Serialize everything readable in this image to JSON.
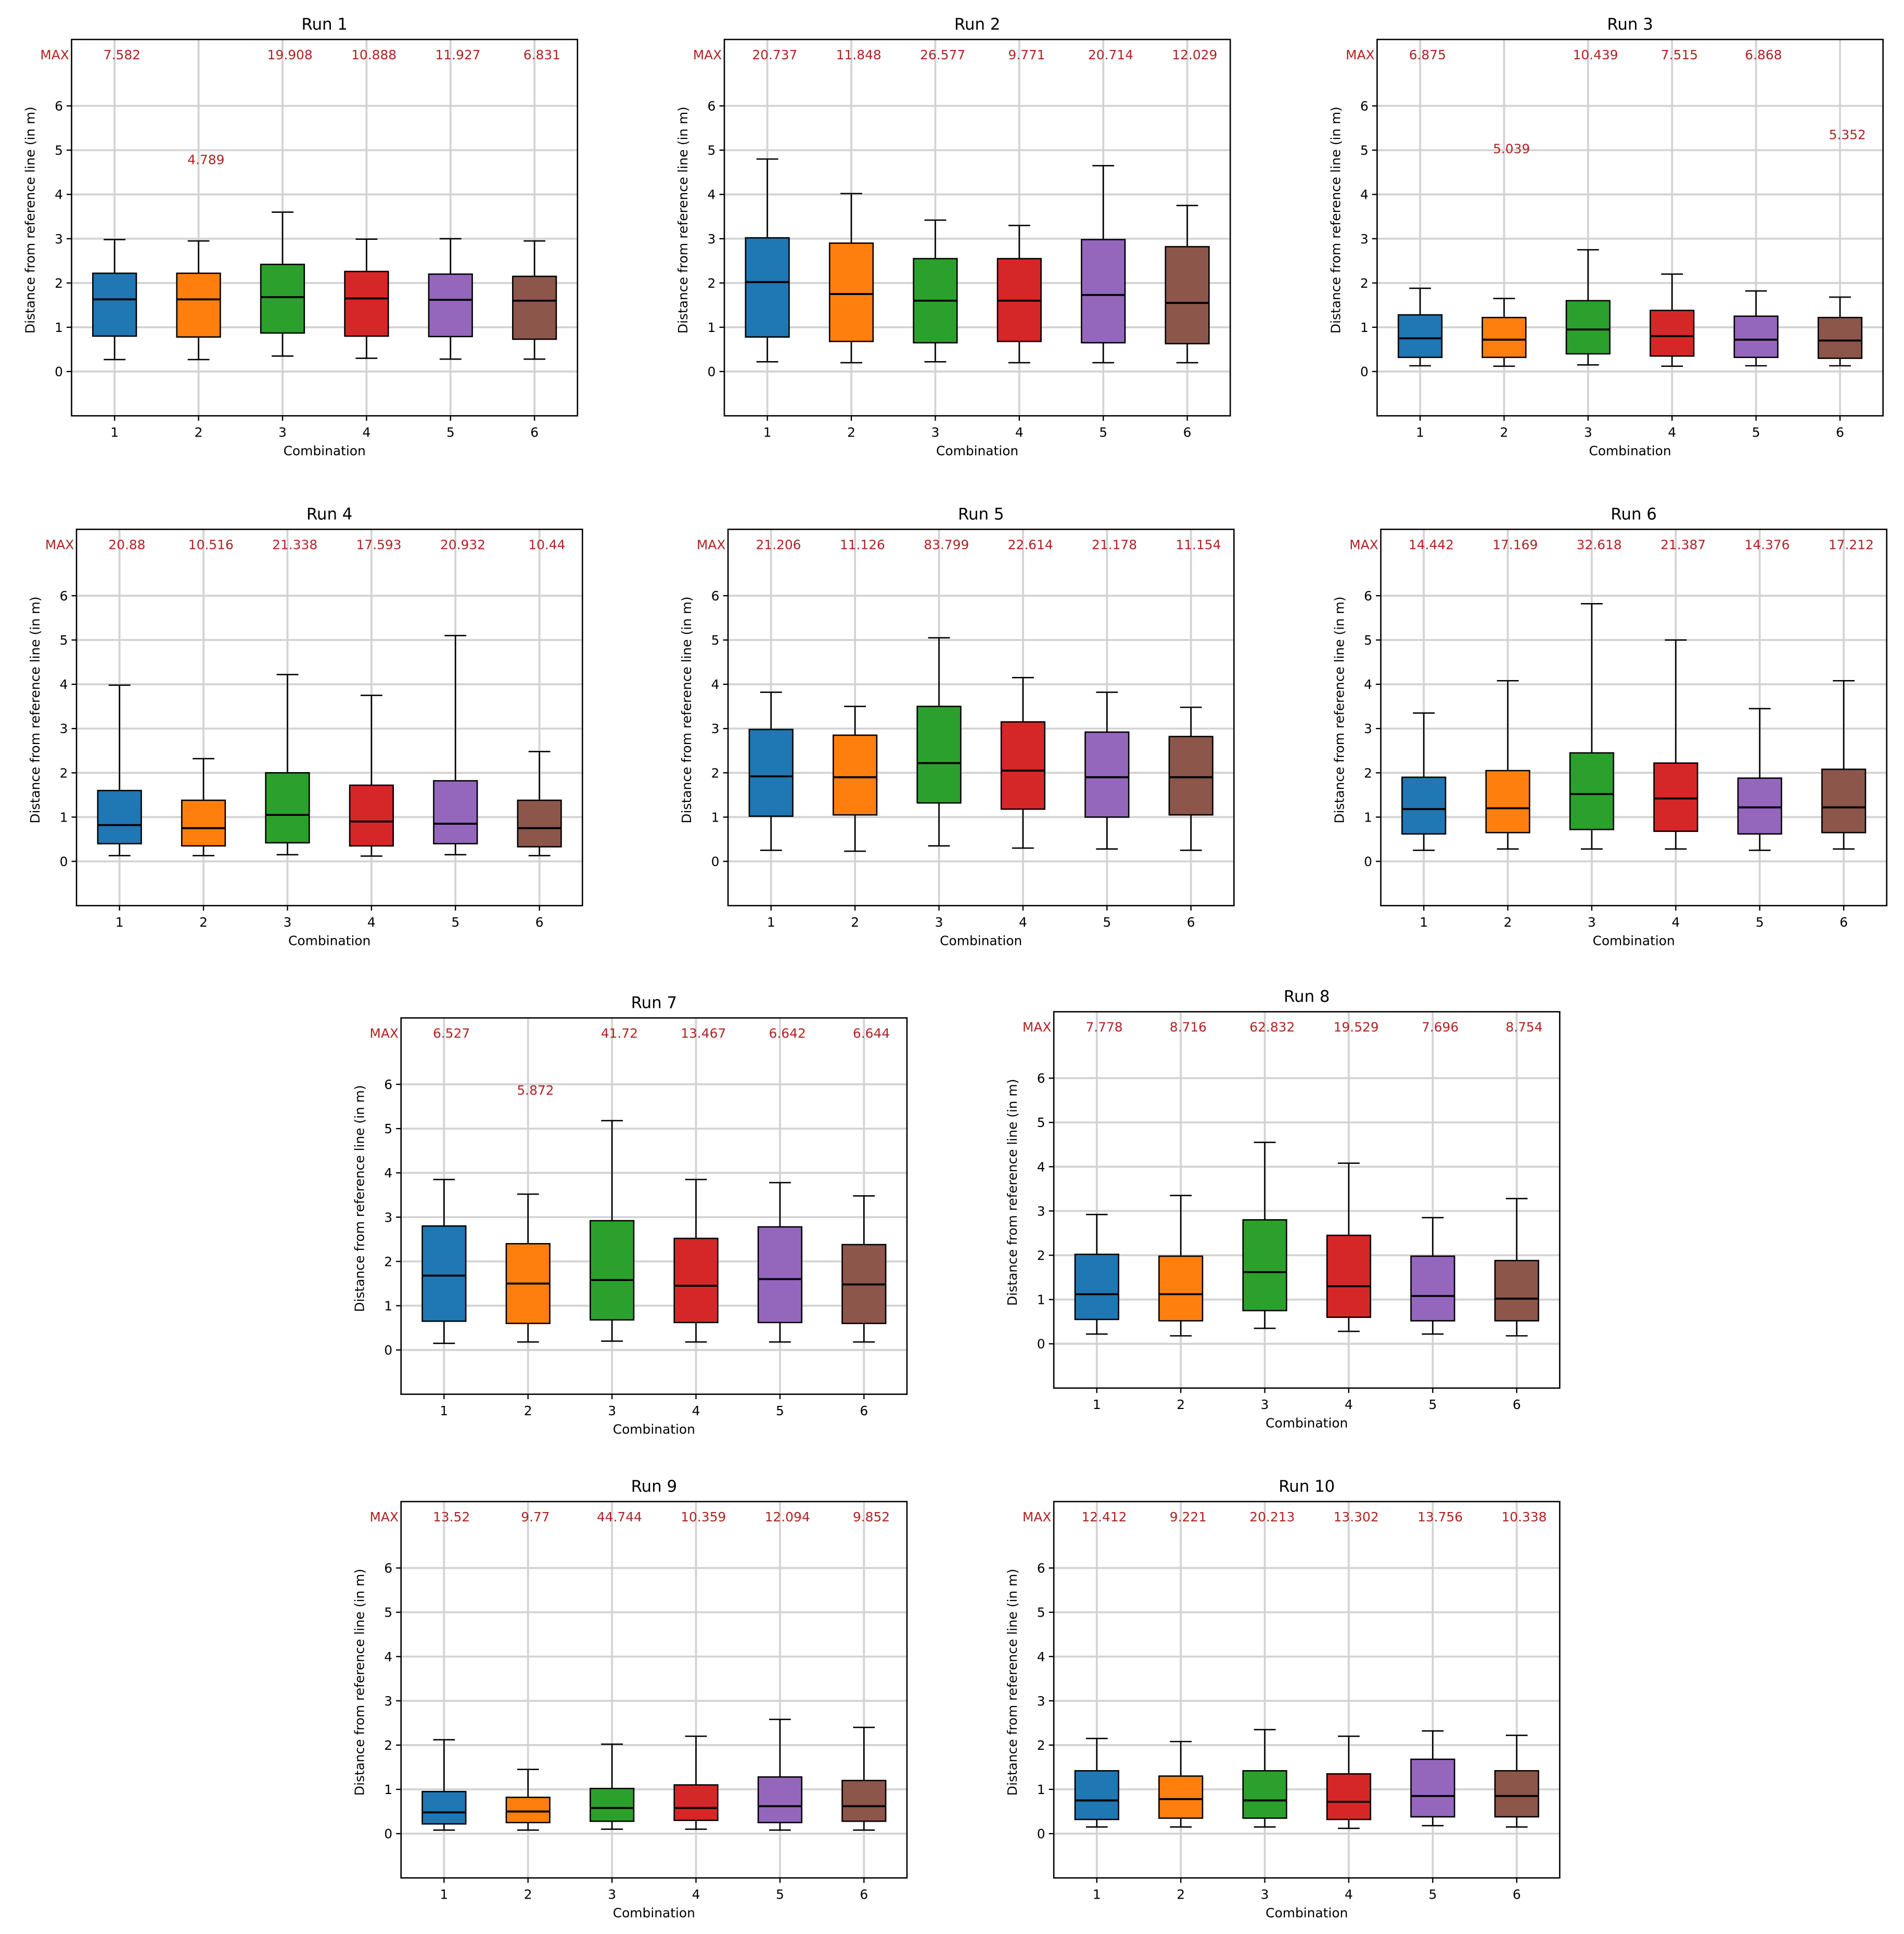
{
  "figure": {
    "max_label": "MAX"
  },
  "colors": [
    "#1f77b4",
    "#ff7f0e",
    "#2ca02c",
    "#d62728",
    "#9467bd",
    "#8c564b"
  ],
  "max_text_color": "#b22222",
  "chart_data": [
    {
      "type": "box",
      "title": "Run 1",
      "xlabel": "Combination",
      "ylabel": "Distance from reference line (in m)",
      "categories": [
        "1",
        "2",
        "3",
        "4",
        "5",
        "6"
      ],
      "yticks": [
        "0",
        "1",
        "2",
        "3",
        "4",
        "5",
        "6"
      ],
      "ylim": [
        -1,
        7.5
      ],
      "max_values": [
        "7.582",
        "",
        "19.908",
        "10.888",
        "11.927",
        "6.831"
      ],
      "inrange_max": [
        {
          "category": 2,
          "value": 4.789,
          "label": "4.789"
        }
      ],
      "boxes": [
        {
          "whislo": 0.27,
          "q1": 0.8,
          "med": 1.63,
          "q3": 2.22,
          "whishi": 2.98
        },
        {
          "whislo": 0.27,
          "q1": 0.78,
          "med": 1.63,
          "q3": 2.22,
          "whishi": 2.95
        },
        {
          "whislo": 0.35,
          "q1": 0.87,
          "med": 1.68,
          "q3": 2.42,
          "whishi": 3.6
        },
        {
          "whislo": 0.3,
          "q1": 0.8,
          "med": 1.65,
          "q3": 2.26,
          "whishi": 2.99
        },
        {
          "whislo": 0.28,
          "q1": 0.79,
          "med": 1.62,
          "q3": 2.2,
          "whishi": 3.0
        },
        {
          "whislo": 0.28,
          "q1": 0.73,
          "med": 1.6,
          "q3": 2.15,
          "whishi": 2.95
        }
      ]
    },
    {
      "type": "box",
      "title": "Run 2",
      "xlabel": "Combination",
      "ylabel": "Distance from reference line (in m)",
      "categories": [
        "1",
        "2",
        "3",
        "4",
        "5",
        "6"
      ],
      "yticks": [
        "0",
        "1",
        "2",
        "3",
        "4",
        "5",
        "6"
      ],
      "ylim": [
        -1,
        7.5
      ],
      "max_values": [
        "20.737",
        "11.848",
        "26.577",
        "9.771",
        "20.714",
        "12.029"
      ],
      "inrange_max": [],
      "boxes": [
        {
          "whislo": 0.22,
          "q1": 0.78,
          "med": 2.02,
          "q3": 3.02,
          "whishi": 4.8
        },
        {
          "whislo": 0.2,
          "q1": 0.68,
          "med": 1.75,
          "q3": 2.9,
          "whishi": 4.02
        },
        {
          "whislo": 0.22,
          "q1": 0.65,
          "med": 1.6,
          "q3": 2.55,
          "whishi": 3.42
        },
        {
          "whislo": 0.2,
          "q1": 0.68,
          "med": 1.6,
          "q3": 2.55,
          "whishi": 3.3
        },
        {
          "whislo": 0.2,
          "q1": 0.65,
          "med": 1.73,
          "q3": 2.98,
          "whishi": 4.65
        },
        {
          "whislo": 0.2,
          "q1": 0.63,
          "med": 1.55,
          "q3": 2.82,
          "whishi": 3.75
        }
      ]
    },
    {
      "type": "box",
      "title": "Run 3",
      "xlabel": "Combination",
      "ylabel": "Distance from reference line (in m)",
      "categories": [
        "1",
        "2",
        "3",
        "4",
        "5",
        "6"
      ],
      "yticks": [
        "0",
        "1",
        "2",
        "3",
        "4",
        "5",
        "6"
      ],
      "ylim": [
        -1,
        7.5
      ],
      "max_values": [
        "6.875",
        "",
        "10.439",
        "7.515",
        "6.868",
        ""
      ],
      "inrange_max": [
        {
          "category": 2,
          "value": 5.039,
          "label": "5.039"
        },
        {
          "category": 6,
          "value": 5.352,
          "label": "5.352"
        }
      ],
      "boxes": [
        {
          "whislo": 0.13,
          "q1": 0.32,
          "med": 0.75,
          "q3": 1.28,
          "whishi": 1.88
        },
        {
          "whislo": 0.12,
          "q1": 0.32,
          "med": 0.72,
          "q3": 1.22,
          "whishi": 1.65
        },
        {
          "whislo": 0.15,
          "q1": 0.4,
          "med": 0.95,
          "q3": 1.6,
          "whishi": 2.75
        },
        {
          "whislo": 0.12,
          "q1": 0.35,
          "med": 0.8,
          "q3": 1.38,
          "whishi": 2.2
        },
        {
          "whislo": 0.13,
          "q1": 0.32,
          "med": 0.72,
          "q3": 1.25,
          "whishi": 1.82
        },
        {
          "whislo": 0.13,
          "q1": 0.3,
          "med": 0.7,
          "q3": 1.22,
          "whishi": 1.68
        }
      ]
    },
    {
      "type": "box",
      "title": "Run 4",
      "xlabel": "Combination",
      "ylabel": "Distance from reference line (in m)",
      "categories": [
        "1",
        "2",
        "3",
        "4",
        "5",
        "6"
      ],
      "yticks": [
        "0",
        "1",
        "2",
        "3",
        "4",
        "5",
        "6"
      ],
      "ylim": [
        -1,
        7.5
      ],
      "max_values": [
        "20.88",
        "10.516",
        "21.338",
        "17.593",
        "20.932",
        "10.44"
      ],
      "inrange_max": [],
      "boxes": [
        {
          "whislo": 0.13,
          "q1": 0.4,
          "med": 0.82,
          "q3": 1.6,
          "whishi": 3.98
        },
        {
          "whislo": 0.13,
          "q1": 0.35,
          "med": 0.75,
          "q3": 1.38,
          "whishi": 2.32
        },
        {
          "whislo": 0.15,
          "q1": 0.42,
          "med": 1.05,
          "q3": 2.0,
          "whishi": 4.22
        },
        {
          "whislo": 0.12,
          "q1": 0.35,
          "med": 0.9,
          "q3": 1.72,
          "whishi": 3.75
        },
        {
          "whislo": 0.15,
          "q1": 0.4,
          "med": 0.85,
          "q3": 1.82,
          "whishi": 5.1
        },
        {
          "whislo": 0.13,
          "q1": 0.33,
          "med": 0.75,
          "q3": 1.38,
          "whishi": 2.48
        }
      ]
    },
    {
      "type": "box",
      "title": "Run 5",
      "xlabel": "Combination",
      "ylabel": "Distance from reference line (in m)",
      "categories": [
        "1",
        "2",
        "3",
        "4",
        "5",
        "6"
      ],
      "yticks": [
        "0",
        "1",
        "2",
        "3",
        "4",
        "5",
        "6"
      ],
      "ylim": [
        -1,
        7.5
      ],
      "max_values": [
        "21.206",
        "11.126",
        "83.799",
        "22.614",
        "21.178",
        "11.154"
      ],
      "inrange_max": [],
      "boxes": [
        {
          "whislo": 0.25,
          "q1": 1.02,
          "med": 1.92,
          "q3": 2.98,
          "whishi": 3.82
        },
        {
          "whislo": 0.23,
          "q1": 1.05,
          "med": 1.9,
          "q3": 2.85,
          "whishi": 3.5
        },
        {
          "whislo": 0.35,
          "q1": 1.32,
          "med": 2.22,
          "q3": 3.5,
          "whishi": 5.05
        },
        {
          "whislo": 0.3,
          "q1": 1.18,
          "med": 2.05,
          "q3": 3.15,
          "whishi": 4.15
        },
        {
          "whislo": 0.28,
          "q1": 1.0,
          "med": 1.9,
          "q3": 2.92,
          "whishi": 3.82
        },
        {
          "whislo": 0.25,
          "q1": 1.05,
          "med": 1.9,
          "q3": 2.82,
          "whishi": 3.48
        }
      ]
    },
    {
      "type": "box",
      "title": "Run 6",
      "xlabel": "Combination",
      "ylabel": "Distance from reference line (in m)",
      "categories": [
        "1",
        "2",
        "3",
        "4",
        "5",
        "6"
      ],
      "yticks": [
        "0",
        "1",
        "2",
        "3",
        "4",
        "5",
        "6"
      ],
      "ylim": [
        -1,
        7.5
      ],
      "max_values": [
        "14.442",
        "17.169",
        "32.618",
        "21.387",
        "14.376",
        "17.212"
      ],
      "inrange_max": [],
      "boxes": [
        {
          "whislo": 0.25,
          "q1": 0.62,
          "med": 1.18,
          "q3": 1.9,
          "whishi": 3.35
        },
        {
          "whislo": 0.28,
          "q1": 0.65,
          "med": 1.2,
          "q3": 2.05,
          "whishi": 4.08
        },
        {
          "whislo": 0.28,
          "q1": 0.72,
          "med": 1.52,
          "q3": 2.45,
          "whishi": 5.82
        },
        {
          "whislo": 0.28,
          "q1": 0.68,
          "med": 1.42,
          "q3": 2.22,
          "whishi": 5.0
        },
        {
          "whislo": 0.25,
          "q1": 0.62,
          "med": 1.22,
          "q3": 1.88,
          "whishi": 3.45
        },
        {
          "whislo": 0.28,
          "q1": 0.65,
          "med": 1.22,
          "q3": 2.08,
          "whishi": 4.08
        }
      ]
    },
    {
      "type": "box",
      "title": "Run 7",
      "xlabel": "Combination",
      "ylabel": "Distance from reference line (in m)",
      "categories": [
        "1",
        "2",
        "3",
        "4",
        "5",
        "6"
      ],
      "yticks": [
        "0",
        "1",
        "2",
        "3",
        "4",
        "5",
        "6"
      ],
      "ylim": [
        -1,
        7.5
      ],
      "max_values": [
        "6.527",
        "",
        "41.72",
        "13.467",
        "6.642",
        "6.644"
      ],
      "inrange_max": [
        {
          "category": 2,
          "value": 5.872,
          "label": "5.872"
        }
      ],
      "boxes": [
        {
          "whislo": 0.15,
          "q1": 0.65,
          "med": 1.68,
          "q3": 2.8,
          "whishi": 3.85
        },
        {
          "whislo": 0.18,
          "q1": 0.6,
          "med": 1.5,
          "q3": 2.4,
          "whishi": 3.52
        },
        {
          "whislo": 0.2,
          "q1": 0.68,
          "med": 1.58,
          "q3": 2.92,
          "whishi": 5.18
        },
        {
          "whislo": 0.18,
          "q1": 0.62,
          "med": 1.45,
          "q3": 2.52,
          "whishi": 3.85
        },
        {
          "whislo": 0.18,
          "q1": 0.62,
          "med": 1.6,
          "q3": 2.78,
          "whishi": 3.78
        },
        {
          "whislo": 0.18,
          "q1": 0.6,
          "med": 1.48,
          "q3": 2.38,
          "whishi": 3.48
        }
      ]
    },
    {
      "type": "box",
      "title": "Run 8",
      "xlabel": "Combination",
      "ylabel": "Distance from reference line (in m)",
      "categories": [
        "1",
        "2",
        "3",
        "4",
        "5",
        "6"
      ],
      "yticks": [
        "0",
        "1",
        "2",
        "3",
        "4",
        "5",
        "6"
      ],
      "ylim": [
        -1,
        7.5
      ],
      "max_values": [
        "7.778",
        "8.716",
        "62.832",
        "19.529",
        "7.696",
        "8.754"
      ],
      "inrange_max": [],
      "boxes": [
        {
          "whislo": 0.22,
          "q1": 0.55,
          "med": 1.12,
          "q3": 2.02,
          "whishi": 2.92
        },
        {
          "whislo": 0.18,
          "q1": 0.52,
          "med": 1.12,
          "q3": 1.98,
          "whishi": 3.35
        },
        {
          "whislo": 0.35,
          "q1": 0.75,
          "med": 1.62,
          "q3": 2.8,
          "whishi": 4.55
        },
        {
          "whislo": 0.28,
          "q1": 0.6,
          "med": 1.3,
          "q3": 2.45,
          "whishi": 4.08
        },
        {
          "whislo": 0.22,
          "q1": 0.52,
          "med": 1.08,
          "q3": 1.98,
          "whishi": 2.85
        },
        {
          "whislo": 0.18,
          "q1": 0.52,
          "med": 1.02,
          "q3": 1.88,
          "whishi": 3.28
        }
      ]
    },
    {
      "type": "box",
      "title": "Run 9",
      "xlabel": "Combination",
      "ylabel": "Distance from reference line (in m)",
      "categories": [
        "1",
        "2",
        "3",
        "4",
        "5",
        "6"
      ],
      "yticks": [
        "0",
        "1",
        "2",
        "3",
        "4",
        "5",
        "6"
      ],
      "ylim": [
        -1,
        7.5
      ],
      "max_values": [
        "13.52",
        "9.77",
        "44.744",
        "10.359",
        "12.094",
        "9.852"
      ],
      "inrange_max": [],
      "boxes": [
        {
          "whislo": 0.08,
          "q1": 0.22,
          "med": 0.48,
          "q3": 0.95,
          "whishi": 2.12
        },
        {
          "whislo": 0.08,
          "q1": 0.25,
          "med": 0.5,
          "q3": 0.82,
          "whishi": 1.45
        },
        {
          "whislo": 0.1,
          "q1": 0.28,
          "med": 0.58,
          "q3": 1.02,
          "whishi": 2.02
        },
        {
          "whislo": 0.1,
          "q1": 0.3,
          "med": 0.58,
          "q3": 1.1,
          "whishi": 2.2
        },
        {
          "whislo": 0.08,
          "q1": 0.25,
          "med": 0.62,
          "q3": 1.28,
          "whishi": 2.58
        },
        {
          "whislo": 0.08,
          "q1": 0.28,
          "med": 0.62,
          "q3": 1.2,
          "whishi": 2.4
        }
      ]
    },
    {
      "type": "box",
      "title": "Run 10",
      "xlabel": "Combination",
      "ylabel": "Distance from reference line (in m)",
      "categories": [
        "1",
        "2",
        "3",
        "4",
        "5",
        "6"
      ],
      "yticks": [
        "0",
        "1",
        "2",
        "3",
        "4",
        "5",
        "6"
      ],
      "ylim": [
        -1,
        7.5
      ],
      "max_values": [
        "12.412",
        "9.221",
        "20.213",
        "13.302",
        "13.756",
        "10.338"
      ],
      "inrange_max": [],
      "boxes": [
        {
          "whislo": 0.15,
          "q1": 0.32,
          "med": 0.75,
          "q3": 1.42,
          "whishi": 2.15
        },
        {
          "whislo": 0.15,
          "q1": 0.35,
          "med": 0.78,
          "q3": 1.3,
          "whishi": 2.08
        },
        {
          "whislo": 0.15,
          "q1": 0.35,
          "med": 0.75,
          "q3": 1.42,
          "whishi": 2.35
        },
        {
          "whislo": 0.12,
          "q1": 0.32,
          "med": 0.72,
          "q3": 1.35,
          "whishi": 2.2
        },
        {
          "whislo": 0.18,
          "q1": 0.38,
          "med": 0.85,
          "q3": 1.68,
          "whishi": 2.32
        },
        {
          "whislo": 0.15,
          "q1": 0.38,
          "med": 0.85,
          "q3": 1.42,
          "whishi": 2.22
        }
      ]
    }
  ]
}
